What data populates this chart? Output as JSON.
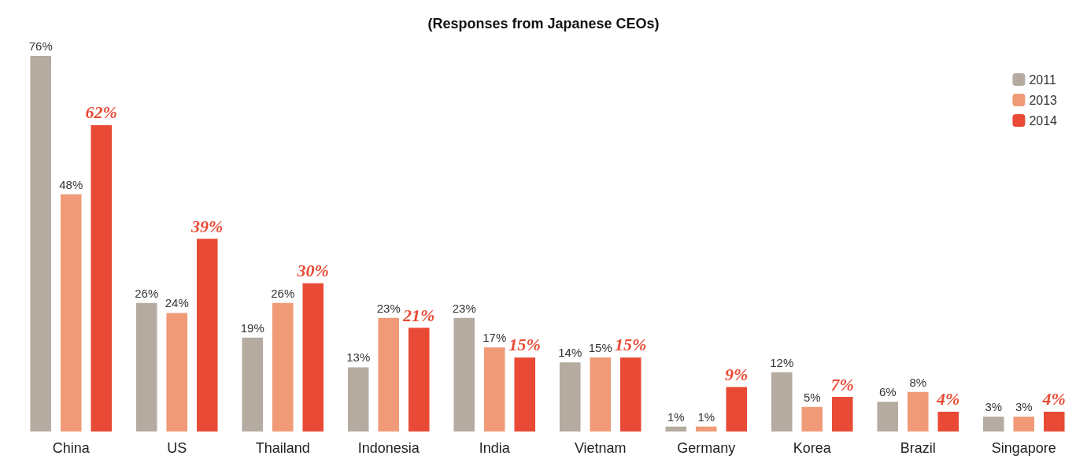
{
  "chart_data": {
    "type": "bar",
    "title": "(Responses from Japanese CEOs)",
    "categories": [
      "China",
      "US",
      "Thailand",
      "Indonesia",
      "India",
      "Vietnam",
      "Germany",
      "Korea",
      "Brazil",
      "Singapore"
    ],
    "series": [
      {
        "name": "2011",
        "color": "#b5aba0",
        "values": [
          76,
          26,
          19,
          13,
          23,
          14,
          1,
          12,
          6,
          3
        ],
        "value_labels": [
          "76%",
          "26%",
          "19%",
          "13%",
          "23%",
          "14%",
          "1%",
          "12%",
          "6%",
          "3%"
        ]
      },
      {
        "name": "2013",
        "color": "#f09a78",
        "values": [
          48,
          24,
          26,
          23,
          17,
          15,
          1,
          5,
          8,
          3
        ],
        "value_labels": [
          "48%",
          "24%",
          "26%",
          "23%",
          "17%",
          "15%",
          "1%",
          "5%",
          "8%",
          "3%"
        ]
      },
      {
        "name": "2014",
        "color": "#e84a35",
        "values": [
          62,
          39,
          30,
          21,
          15,
          15,
          9,
          7,
          4,
          4
        ],
        "value_labels": [
          "62%",
          "39%",
          "30%",
          "21%",
          "15%",
          "15%",
          "9%",
          "7%",
          "4%",
          "4%"
        ]
      }
    ],
    "legend": "top right"
  }
}
